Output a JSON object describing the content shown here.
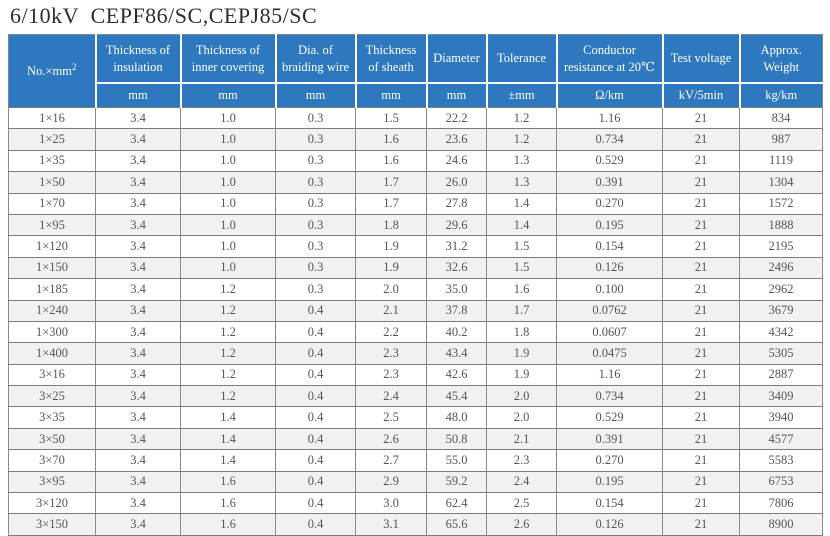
{
  "title": "6/10kV  CEPF86/SC,CEPJ85/SC",
  "colors": {
    "header_bg": "#2d78be",
    "header_text": "#ffffff",
    "alt_row_bg": "#f1f1f1",
    "grid_border": "#8b8b8b",
    "body_text": "#55565a"
  },
  "table": {
    "columns": [
      {
        "label": "No.×mm",
        "sup": "2",
        "unit": ""
      },
      {
        "label": "Thickness of insulation",
        "unit": "mm"
      },
      {
        "label": "Thickness of inner covering",
        "unit": "mm"
      },
      {
        "label": "Dia. of braiding wire",
        "unit": "mm"
      },
      {
        "label": "Thickness of sheath",
        "unit": "mm"
      },
      {
        "label": "Diameter",
        "unit": "mm"
      },
      {
        "label": "Tolerance",
        "unit": "±mm"
      },
      {
        "label": "Conductor resistance at 20℃",
        "unit": "Ω/km"
      },
      {
        "label": "Test voltage",
        "unit": "kV/5min"
      },
      {
        "label": "Approx. Weight",
        "unit": "kg/km"
      }
    ],
    "rows": [
      [
        "1×16",
        "3.4",
        "1.0",
        "0.3",
        "1.5",
        "22.2",
        "1.2",
        "1.16",
        "21",
        "834"
      ],
      [
        "1×25",
        "3.4",
        "1.0",
        "0.3",
        "1.6",
        "23.6",
        "1.2",
        "0.734",
        "21",
        "987"
      ],
      [
        "1×35",
        "3.4",
        "1.0",
        "0.3",
        "1.6",
        "24.6",
        "1.3",
        "0.529",
        "21",
        "1119"
      ],
      [
        "1×50",
        "3.4",
        "1.0",
        "0.3",
        "1.7",
        "26.0",
        "1.3",
        "0.391",
        "21",
        "1304"
      ],
      [
        "1×70",
        "3.4",
        "1.0",
        "0.3",
        "1.7",
        "27.8",
        "1.4",
        "0.270",
        "21",
        "1572"
      ],
      [
        "1×95",
        "3.4",
        "1.0",
        "0.3",
        "1.8",
        "29.6",
        "1.4",
        "0.195",
        "21",
        "1888"
      ],
      [
        "1×120",
        "3.4",
        "1.0",
        "0.3",
        "1.9",
        "31.2",
        "1.5",
        "0.154",
        "21",
        "2195"
      ],
      [
        "1×150",
        "3.4",
        "1.0",
        "0.3",
        "1.9",
        "32.6",
        "1.5",
        "0.126",
        "21",
        "2496"
      ],
      [
        "1×185",
        "3.4",
        "1.2",
        "0.3",
        "2.0",
        "35.0",
        "1.6",
        "0.100",
        "21",
        "2962"
      ],
      [
        "1×240",
        "3.4",
        "1.2",
        "0.4",
        "2.1",
        "37.8",
        "1.7",
        "0.0762",
        "21",
        "3679"
      ],
      [
        "1×300",
        "3.4",
        "1.2",
        "0.4",
        "2.2",
        "40.2",
        "1.8",
        "0.0607",
        "21",
        "4342"
      ],
      [
        "1×400",
        "3.4",
        "1.2",
        "0.4",
        "2.3",
        "43.4",
        "1.9",
        "0.0475",
        "21",
        "5305"
      ],
      [
        "3×16",
        "3.4",
        "1.2",
        "0.4",
        "2.3",
        "42.6",
        "1.9",
        "1.16",
        "21",
        "2887"
      ],
      [
        "3×25",
        "3.4",
        "1.2",
        "0.4",
        "2.4",
        "45.4",
        "2.0",
        "0.734",
        "21",
        "3409"
      ],
      [
        "3×35",
        "3.4",
        "1.4",
        "0.4",
        "2.5",
        "48.0",
        "2.0",
        "0.529",
        "21",
        "3940"
      ],
      [
        "3×50",
        "3.4",
        "1.4",
        "0.4",
        "2.6",
        "50.8",
        "2.1",
        "0.391",
        "21",
        "4577"
      ],
      [
        "3×70",
        "3.4",
        "1.4",
        "0.4",
        "2.7",
        "55.0",
        "2.3",
        "0.270",
        "21",
        "5583"
      ],
      [
        "3×95",
        "3.4",
        "1.6",
        "0.4",
        "2.9",
        "59.2",
        "2.4",
        "0.195",
        "21",
        "6753"
      ],
      [
        "3×120",
        "3.4",
        "1.6",
        "0.4",
        "3.0",
        "62.4",
        "2.5",
        "0.154",
        "21",
        "7806"
      ],
      [
        "3×150",
        "3.4",
        "1.6",
        "0.4",
        "3.1",
        "65.6",
        "2.6",
        "0.126",
        "21",
        "8900"
      ]
    ]
  }
}
